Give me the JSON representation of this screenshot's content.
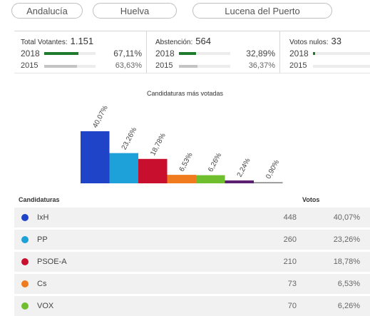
{
  "location_pills": [
    "Andalucía",
    "Huelva",
    "Lucena del Puerto"
  ],
  "stats": [
    {
      "label": "Total Votantes:",
      "value": "1.151",
      "rows": [
        {
          "year": "2018",
          "pct": "67,11%",
          "level": 67.11
        },
        {
          "year": "2015",
          "pct": "63,63%",
          "level": 63.63
        }
      ]
    },
    {
      "label": "Abstención:",
      "value": "564",
      "rows": [
        {
          "year": "2018",
          "pct": "32,89%",
          "level": 32.89
        },
        {
          "year": "2015",
          "pct": "36,37%",
          "level": 36.37
        }
      ]
    },
    {
      "label": "Votos nulos:",
      "value": "33",
      "rows": [
        {
          "year": "2018",
          "pct": "",
          "level": 2.8
        },
        {
          "year": "2015",
          "pct": "",
          "level": 0
        }
      ]
    }
  ],
  "colors": {
    "bar_2018": "#1e7b2e",
    "bar_2015": "#c4c4c4"
  },
  "chart_data": {
    "type": "bar",
    "title": "Candidaturas más votadas",
    "categories": [
      "IxH",
      "PP",
      "PSOE-A",
      "Cs",
      "VOX",
      "",
      ""
    ],
    "values": [
      40.07,
      23.26,
      18.78,
      6.53,
      6.26,
      2.24,
      0.9
    ],
    "labels": [
      "40,07%",
      "23,26%",
      "18,78%",
      "6,53%",
      "6,26%",
      "2,24%",
      "0,90%"
    ],
    "colors": [
      "#1f44c7",
      "#1ea0d8",
      "#c8102e",
      "#f07a1e",
      "#6fbe2e",
      "#5a1f6e",
      "#8a8a8a"
    ],
    "ylim": [
      0,
      45
    ]
  },
  "table": {
    "headers": {
      "party": "Candidaturas",
      "votes": "Votos"
    },
    "rows": [
      {
        "party": "IxH",
        "votes": "448",
        "pct": "40,07%",
        "color": "#1f44c7"
      },
      {
        "party": "PP",
        "votes": "260",
        "pct": "23,26%",
        "color": "#1ea0d8"
      },
      {
        "party": "PSOE-A",
        "votes": "210",
        "pct": "18,78%",
        "color": "#c8102e"
      },
      {
        "party": "Cs",
        "votes": "73",
        "pct": "6,53%",
        "color": "#f07a1e"
      },
      {
        "party": "VOX",
        "votes": "70",
        "pct": "6,26%",
        "color": "#6fbe2e"
      }
    ]
  }
}
